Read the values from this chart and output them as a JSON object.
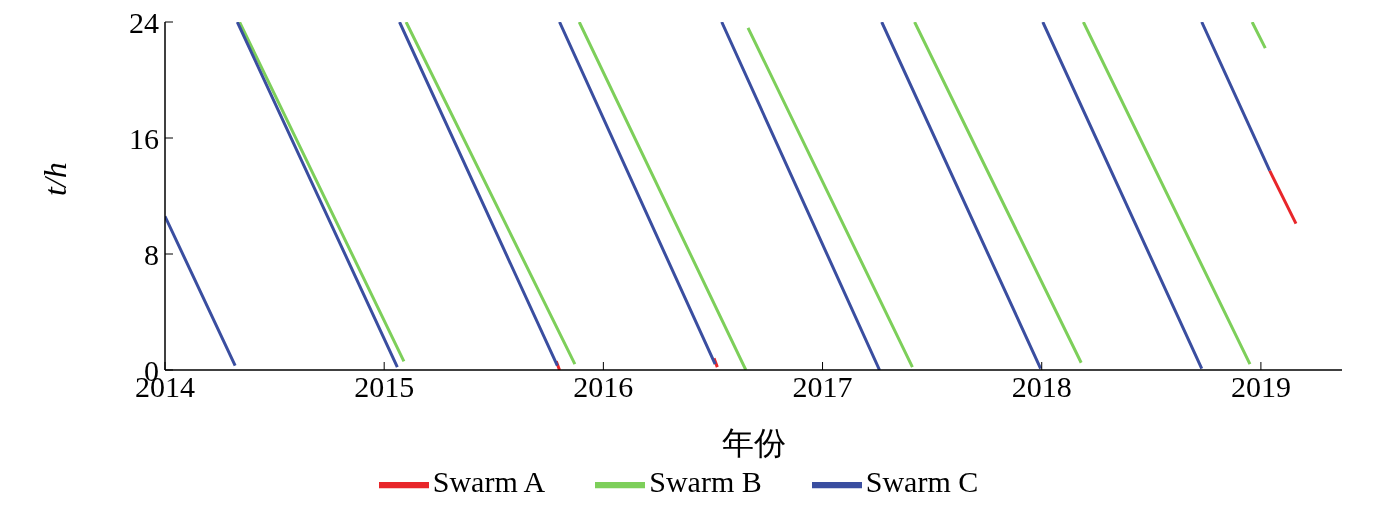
{
  "chart_data": {
    "type": "line",
    "xlabel": "年份",
    "ylabel": "t/h",
    "xlim": [
      2014,
      2019.37
    ],
    "xticks": [
      2014,
      2015,
      2016,
      2017,
      2018,
      2019
    ],
    "ylim": [
      0,
      24
    ],
    "yticks": [
      0,
      8,
      16,
      24
    ],
    "grid": false,
    "legend": "bottom",
    "marker": "none",
    "line_style": "solid",
    "series": [
      {
        "name": "Swarm A",
        "color": "#e8262a",
        "x": [
          2015.785,
          2015.8,
          null,
          2016.505,
          2016.52,
          null,
          2019.04,
          2019.16
        ],
        "values": [
          0.6,
          0,
          null,
          0.8,
          0.2,
          null,
          13.75,
          10.1
        ]
      },
      {
        "name": "Swarm B",
        "color": "#7dcf5a",
        "x": [
          2014.34,
          2015.09,
          null,
          2015.1,
          2015.87,
          null,
          2015.89,
          2016.65,
          null,
          2016.66,
          2017.41,
          null,
          2017.42,
          2018.18,
          null,
          2018.19,
          2018.95,
          null,
          2018.96,
          2019.02
        ],
        "values": [
          24,
          0.6,
          null,
          24,
          0.4,
          null,
          24,
          0,
          null,
          23.6,
          0.2,
          null,
          24,
          0.5,
          null,
          24,
          0.4,
          null,
          24,
          22.2
        ]
      },
      {
        "name": "Swarm C",
        "color": "#3a4ea0",
        "x": [
          2014.0,
          2014.32,
          null,
          2014.33,
          2015.06,
          null,
          2015.07,
          2015.79,
          null,
          2015.8,
          2016.51,
          null,
          2016.54,
          2017.26,
          null,
          2017.27,
          2017.995,
          null,
          2018.005,
          2018.73,
          null,
          2018.73,
          2019.04
        ],
        "values": [
          10.6,
          0.3,
          null,
          24,
          0.2,
          null,
          24,
          0.3,
          null,
          24,
          0.4,
          null,
          24,
          0,
          null,
          24,
          0.1,
          null,
          24,
          0.1,
          null,
          24,
          13.75
        ]
      }
    ]
  }
}
